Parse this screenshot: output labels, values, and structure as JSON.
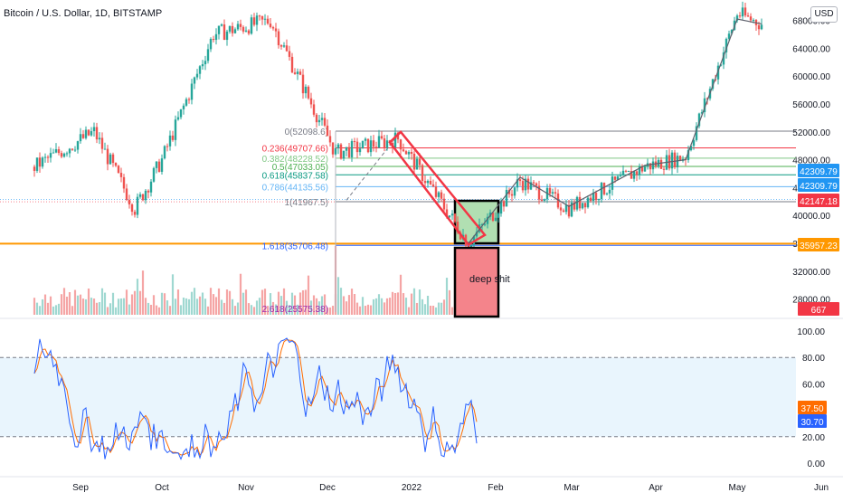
{
  "header": {
    "title": "Bitcoin / U.S. Dollar, 1D, BITSTAMP",
    "currency_button": "USD"
  },
  "colors": {
    "up": "#26a69a",
    "down": "#ef5350",
    "stoch_k": "#2962ff",
    "stoch_d": "#ff6d00",
    "orange_line": "#ff9800"
  },
  "chart_data": [
    {
      "type": "candlestick",
      "title": "Bitcoin / U.S. Dollar, 1D, BITSTAMP",
      "ylim": [
        25000,
        70000
      ],
      "y_ticks": [
        "68000.00",
        "64000.00",
        "60000.00",
        "56000.00",
        "52000.00",
        "48000.00",
        "44000.00",
        "40000.00",
        "36000.00",
        "32000.00",
        "28000.00"
      ],
      "x_ticks": [
        "Sep",
        "Oct",
        "Nov",
        "Dec",
        "2022",
        "Feb",
        "Mar",
        "Apr",
        "May",
        "Jun"
      ],
      "price_path_approx": [
        {
          "date": "2021-08-15",
          "close": 47000
        },
        {
          "date": "2021-09-06",
          "close": 52000
        },
        {
          "date": "2021-09-21",
          "close": 41000
        },
        {
          "date": "2021-10-01",
          "close": 48000
        },
        {
          "date": "2021-10-20",
          "close": 66000
        },
        {
          "date": "2021-11-10",
          "close": 68000
        },
        {
          "date": "2021-12-04",
          "close": 49000
        },
        {
          "date": "2021-12-27",
          "close": 51000
        },
        {
          "date": "2022-01-22",
          "close": 36000
        },
        {
          "date": "2022-02-10",
          "close": 45000
        },
        {
          "date": "2022-02-28",
          "close": 41000
        },
        {
          "date": "2022-03-28",
          "close": 47000
        },
        {
          "date": "2022-04-12",
          "close": 48500
        },
        {
          "date": "2022-05-01",
          "close": 69000
        },
        {
          "date": "2022-05-10",
          "close": 67500
        }
      ],
      "price_labels": [
        {
          "text": "42309.79",
          "color": "#2196f3"
        },
        {
          "text": "42309.79",
          "color": "#2196f3"
        },
        {
          "text": "42147.18",
          "color": "#f23645"
        },
        {
          "text": "35957.23",
          "color": "#ff9800"
        },
        {
          "text": "667",
          "color": "#f23645"
        }
      ],
      "fib_levels": [
        {
          "label": "0(52098.6)",
          "value": 52098.6,
          "color": "#787b86"
        },
        {
          "label": "0.236(49707.66)",
          "value": 49707.66,
          "color": "#f23645"
        },
        {
          "label": "0.382(48228.52)",
          "value": 48228.52,
          "color": "#81c784"
        },
        {
          "label": "0.5(47033.05)",
          "value": 47033.05,
          "color": "#4caf50"
        },
        {
          "label": "0.618(45837.58)",
          "value": 45837.58,
          "color": "#089981"
        },
        {
          "label": "0.786(44135.56)",
          "value": 44135.56,
          "color": "#64b5f6"
        },
        {
          "label": "1(41967.5)",
          "value": 41967.5,
          "color": "#787b86"
        },
        {
          "label": "1.618(35706.48)",
          "value": 35706.48,
          "color": "#2962ff"
        },
        {
          "label": "2.618(25575.38)",
          "value": 25575.38,
          "color": "#9c27b0"
        }
      ],
      "annotations": [
        {
          "text": "deep shit"
        }
      ]
    },
    {
      "type": "line",
      "ylim": [
        -5,
        105
      ],
      "y_ticks": [
        "100.00",
        "80.00",
        "60.00",
        "40.00",
        "20.00",
        "0.00"
      ],
      "bands": [
        20,
        80
      ],
      "series": [],
      "last_values": [
        {
          "text": "37.50",
          "color": "#ff6d00"
        },
        {
          "text": "30.70",
          "color": "#2962ff"
        }
      ]
    }
  ]
}
